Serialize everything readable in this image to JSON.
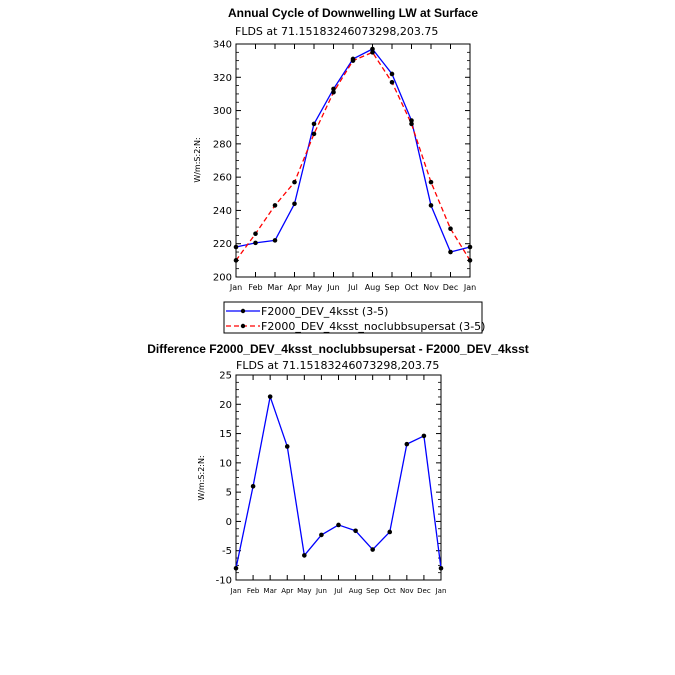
{
  "chart_data": [
    {
      "type": "line",
      "title": "Annual Cycle of Downwelling LW at Surface",
      "subtitle": "FLDS at 71.15183246073298,203.75",
      "ylabel": "W/m:S:2:N:",
      "xlabel": "",
      "categories": [
        "Jan",
        "Feb",
        "Mar",
        "Apr",
        "May",
        "Jun",
        "Jul",
        "Aug",
        "Sep",
        "Oct",
        "Nov",
        "Dec",
        "Jan"
      ],
      "ylim": [
        200,
        340
      ],
      "yticks": [
        200,
        220,
        240,
        260,
        280,
        300,
        320,
        340
      ],
      "series": [
        {
          "name": "F2000_DEV_4ksst (3-5)",
          "color": "#0000ff",
          "dash": "solid",
          "values": [
            218,
            220.5,
            222,
            244,
            292,
            313,
            331,
            337,
            322,
            294,
            243,
            215,
            218
          ]
        },
        {
          "name": "F2000_DEV_4ksst_noclubbsupersat (3-5)",
          "color": "#ff0000",
          "dash": "dashed",
          "values": [
            210,
            226,
            243,
            257,
            286,
            311,
            330,
            335,
            317,
            292,
            257,
            229,
            210
          ]
        }
      ],
      "legend": "bottom"
    },
    {
      "type": "line",
      "title": "Difference F2000_DEV_4ksst_noclubbsupersat - F2000_DEV_4ksst",
      "subtitle": "FLDS at 71.15183246073298,203.75",
      "ylabel": "W/m:S:2:N:",
      "xlabel": "",
      "categories": [
        "Jan",
        "Feb",
        "Mar",
        "Apr",
        "May",
        "Jun",
        "Jul",
        "Aug",
        "Sep",
        "Oct",
        "Nov",
        "Dec",
        "Jan"
      ],
      "ylim": [
        -10,
        25
      ],
      "yticks": [
        -10,
        -5,
        0,
        5,
        10,
        15,
        20,
        25
      ],
      "series": [
        {
          "name": "",
          "color": "#0000ff",
          "dash": "solid",
          "values": [
            -8,
            6,
            21.3,
            12.8,
            -5.8,
            -2.3,
            -0.6,
            -1.6,
            -4.8,
            -1.8,
            13.2,
            14.6,
            -8
          ]
        }
      ]
    }
  ]
}
